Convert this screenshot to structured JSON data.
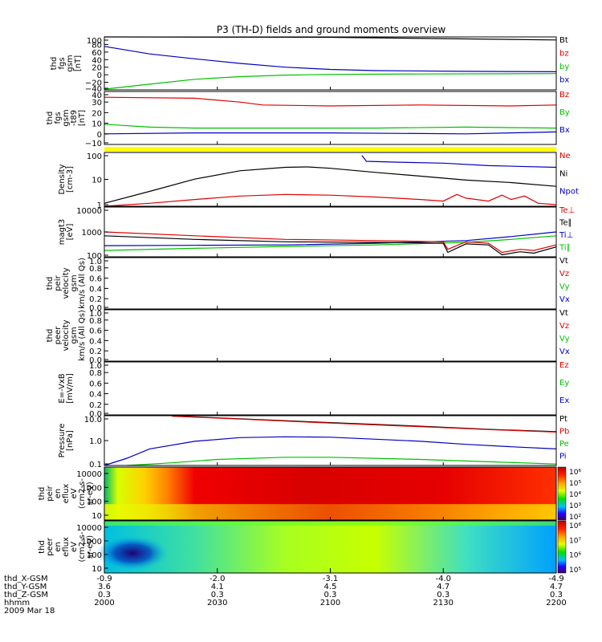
{
  "title": "P3 (TH-D) fields and ground moments overview",
  "chart_data": [
    {
      "type": "line",
      "ylabel": [
        "thd",
        "fgs",
        "gsm",
        "[nT]"
      ],
      "yticks": [
        "100",
        "80",
        "60",
        "40",
        "20",
        "0",
        "−20",
        "−40"
      ],
      "ylim": [
        -40,
        100
      ],
      "legend": [
        {
          "name": "Bt",
          "color": "#000000"
        },
        {
          "name": "bz",
          "color": "#e00000"
        },
        {
          "name": "by",
          "color": "#00c000"
        },
        {
          "name": "bx",
          "color": "#0000c0"
        }
      ],
      "series": [
        {
          "name": "Bt",
          "color": "#000000",
          "points": [
            [
              0.0,
              100
            ],
            [
              0.5,
              99
            ],
            [
              1,
              92
            ]
          ]
        },
        {
          "name": "bx",
          "color": "#0000c0",
          "points": [
            [
              0,
              75
            ],
            [
              0.1,
              55
            ],
            [
              0.2,
              42
            ],
            [
              0.3,
              30
            ],
            [
              0.4,
              20
            ],
            [
              0.5,
              14
            ],
            [
              0.6,
              11
            ],
            [
              0.8,
              9
            ],
            [
              1,
              8
            ]
          ]
        },
        {
          "name": "by",
          "color": "#00c000",
          "points": [
            [
              0,
              -38
            ],
            [
              0.1,
              -25
            ],
            [
              0.2,
              -12
            ],
            [
              0.3,
              -5
            ],
            [
              0.4,
              -1
            ],
            [
              0.5,
              1
            ],
            [
              0.7,
              2
            ],
            [
              1,
              3
            ]
          ]
        }
      ]
    },
    {
      "type": "line",
      "ylabel": [
        "thd",
        "fgs",
        "gsm",
        "-t89",
        "[nT]"
      ],
      "yticks": [
        "40",
        "30",
        "20",
        "10",
        "0",
        "−10"
      ],
      "ylim": [
        -15,
        40
      ],
      "legend": [
        {
          "name": "Bz",
          "color": "#e00000"
        },
        {
          "name": "By",
          "color": "#00c000"
        },
        {
          "name": "Bx",
          "color": "#0000c0"
        }
      ],
      "series": [
        {
          "name": "Bz",
          "color": "#e00000",
          "points": [
            [
              0,
              34
            ],
            [
              0.2,
              33
            ],
            [
              0.3,
              29
            ],
            [
              0.35,
              26
            ],
            [
              0.5,
              25
            ],
            [
              0.7,
              26
            ],
            [
              0.9,
              25
            ],
            [
              1,
              26
            ]
          ]
        },
        {
          "name": "By",
          "color": "#00c000",
          "points": [
            [
              0,
              6
            ],
            [
              0.1,
              3
            ],
            [
              0.2,
              2
            ],
            [
              0.4,
              2
            ],
            [
              0.6,
              2
            ],
            [
              0.8,
              3
            ],
            [
              1,
              2
            ]
          ]
        },
        {
          "name": "Bx",
          "color": "#0000c0",
          "points": [
            [
              0,
              -4
            ],
            [
              0.2,
              -3
            ],
            [
              0.5,
              -3
            ],
            [
              0.8,
              -4
            ],
            [
              1,
              -2
            ]
          ]
        }
      ]
    },
    {
      "type": "line",
      "scale": "log",
      "ylabel": [
        "Density",
        "[cm-3]"
      ],
      "yticks": [
        "100",
        "10",
        "1"
      ],
      "ylim": [
        0.2,
        300
      ],
      "legend": [
        {
          "name": "Ne",
          "color": "#e00000"
        },
        {
          "name": "Ni",
          "color": "#000000"
        },
        {
          "name": "Npot",
          "color": "#0000c0"
        }
      ],
      "series": [
        {
          "name": "Ni",
          "color": "#000000",
          "points": [
            [
              0,
              0.3
            ],
            [
              0.1,
              1.5
            ],
            [
              0.2,
              8
            ],
            [
              0.3,
              25
            ],
            [
              0.4,
              40
            ],
            [
              0.45,
              42
            ],
            [
              0.5,
              35
            ],
            [
              0.6,
              20
            ],
            [
              0.7,
              12
            ],
            [
              0.8,
              7
            ],
            [
              0.9,
              5
            ],
            [
              1,
              3
            ]
          ]
        },
        {
          "name": "Ne",
          "color": "#e00000",
          "points": [
            [
              0,
              0.2
            ],
            [
              0.1,
              0.3
            ],
            [
              0.2,
              0.5
            ],
            [
              0.3,
              0.8
            ],
            [
              0.4,
              1
            ],
            [
              0.5,
              0.9
            ],
            [
              0.6,
              0.7
            ],
            [
              0.7,
              0.5
            ],
            [
              0.75,
              0.4
            ],
            [
              0.78,
              1
            ],
            [
              0.8,
              0.6
            ],
            [
              0.85,
              0.4
            ],
            [
              0.88,
              0.9
            ],
            [
              0.9,
              0.5
            ],
            [
              0.93,
              0.8
            ],
            [
              0.96,
              0.3
            ],
            [
              1,
              0.25
            ]
          ]
        },
        {
          "name": "Npot",
          "color": "#0000c0",
          "points": [
            [
              0.57,
              200
            ],
            [
              0.58,
              90
            ],
            [
              0.65,
              80
            ],
            [
              0.75,
              70
            ],
            [
              0.85,
              50
            ],
            [
              1,
              40
            ]
          ]
        }
      ]
    },
    {
      "type": "line",
      "scale": "log",
      "ylabel": [
        "magt3",
        "[eV]"
      ],
      "yticks": [
        "10000",
        "1000",
        "100"
      ],
      "ylim": [
        100,
        10000
      ],
      "legend": [
        {
          "name": "Te⊥",
          "color": "#e00000"
        },
        {
          "name": "Te∥",
          "color": "#000000"
        },
        {
          "name": "Ti⊥",
          "color": "#0000c0"
        },
        {
          "name": "Ti∥",
          "color": "#00c000"
        }
      ],
      "series": [
        {
          "name": "Ti⊥",
          "color": "#0000c0",
          "points": [
            [
              0,
              280
            ],
            [
              0.2,
              290
            ],
            [
              0.4,
              300
            ],
            [
              0.6,
              350
            ],
            [
              0.8,
              450
            ],
            [
              0.9,
              650
            ],
            [
              1,
              1000
            ]
          ]
        },
        {
          "name": "Ti∥",
          "color": "#00c000",
          "points": [
            [
              0,
              180
            ],
            [
              0.2,
              220
            ],
            [
              0.4,
              260
            ],
            [
              0.6,
              300
            ],
            [
              0.8,
              380
            ],
            [
              0.9,
              500
            ],
            [
              1,
              700
            ]
          ]
        },
        {
          "name": "Te⊥",
          "color": "#e00000",
          "points": [
            [
              0,
              1000
            ],
            [
              0.2,
              700
            ],
            [
              0.4,
              500
            ],
            [
              0.6,
              450
            ],
            [
              0.75,
              400
            ],
            [
              0.76,
              200
            ],
            [
              0.8,
              400
            ],
            [
              0.85,
              350
            ],
            [
              0.88,
              150
            ],
            [
              0.92,
              200
            ],
            [
              0.95,
              180
            ],
            [
              1,
              300
            ]
          ]
        },
        {
          "name": "Te∥",
          "color": "#000000",
          "points": [
            [
              0,
              700
            ],
            [
              0.2,
              500
            ],
            [
              0.4,
              400
            ],
            [
              0.6,
              380
            ],
            [
              0.75,
              350
            ],
            [
              0.76,
              150
            ],
            [
              0.8,
              330
            ],
            [
              0.85,
              300
            ],
            [
              0.88,
              120
            ],
            [
              0.92,
              160
            ],
            [
              0.95,
              140
            ],
            [
              1,
              250
            ]
          ]
        }
      ]
    },
    {
      "type": "line",
      "ylabel": [
        "thd",
        "peir",
        "velocity",
        "gsm",
        "km/s (All Qs)"
      ],
      "yticks": [
        "1.0",
        "0.8",
        "0.6",
        "0.4",
        "0.2",
        "0.0"
      ],
      "ylim": [
        0,
        1
      ],
      "legend": [
        {
          "name": "Vt",
          "color": "#000000"
        },
        {
          "name": "Vz",
          "color": "#e00000"
        },
        {
          "name": "Vy",
          "color": "#00c000"
        },
        {
          "name": "Vx",
          "color": "#0000c0"
        }
      ],
      "series": []
    },
    {
      "type": "line",
      "ylabel": [
        "thd",
        "peer",
        "velocity",
        "gsm",
        "km/s (All Qs)"
      ],
      "yticks": [
        "1.0",
        "0.8",
        "0.6",
        "0.4",
        "0.2",
        "0.0"
      ],
      "ylim": [
        0,
        1
      ],
      "legend": [
        {
          "name": "Vt",
          "color": "#000000"
        },
        {
          "name": "Vz",
          "color": "#e00000"
        },
        {
          "name": "Vy",
          "color": "#00c000"
        },
        {
          "name": "Vx",
          "color": "#0000c0"
        }
      ],
      "series": []
    },
    {
      "type": "line",
      "ylabel": [
        "E=-VxB",
        "[mV/m]"
      ],
      "yticks": [
        "1.0",
        "0.8",
        "0.6",
        "0.4",
        "0.2",
        "0.0"
      ],
      "ylim": [
        0,
        1
      ],
      "legend": [
        {
          "name": "Ez",
          "color": "#e00000"
        },
        {
          "name": "Ey",
          "color": "#00c000"
        },
        {
          "name": "Ex",
          "color": "#0000c0"
        }
      ],
      "series": []
    },
    {
      "type": "line",
      "scale": "log",
      "ylabel": [
        "Pressure",
        "[nPa]"
      ],
      "yticks": [
        "10.0",
        "1.0",
        "0.1"
      ],
      "ylim": [
        0.02,
        40
      ],
      "legend": [
        {
          "name": "Pt",
          "color": "#000000"
        },
        {
          "name": "Pb",
          "color": "#e00000"
        },
        {
          "name": "Pe",
          "color": "#00c000"
        },
        {
          "name": "Pi",
          "color": "#0000c0"
        }
      ],
      "series": [
        {
          "name": "Pt",
          "color": "#000000",
          "points": [
            [
              0.15,
              38
            ],
            [
              0.3,
              25
            ],
            [
              0.5,
              14
            ],
            [
              0.7,
              8
            ],
            [
              0.85,
              5
            ],
            [
              1,
              3.5
            ]
          ]
        },
        {
          "name": "Pb",
          "color": "#e00000",
          "points": [
            [
              0.15,
              37
            ],
            [
              0.3,
              24
            ],
            [
              0.5,
              13
            ],
            [
              0.7,
              7.5
            ],
            [
              0.85,
              4.8
            ],
            [
              1,
              3.3
            ]
          ]
        },
        {
          "name": "Pi",
          "color": "#0000c0",
          "points": [
            [
              0,
              0.02
            ],
            [
              0.05,
              0.06
            ],
            [
              0.1,
              0.25
            ],
            [
              0.2,
              0.8
            ],
            [
              0.3,
              1.4
            ],
            [
              0.4,
              1.6
            ],
            [
              0.5,
              1.5
            ],
            [
              0.6,
              1.1
            ],
            [
              0.7,
              0.8
            ],
            [
              0.8,
              0.5
            ],
            [
              0.9,
              0.35
            ],
            [
              1,
              0.25
            ]
          ]
        },
        {
          "name": "Pe",
          "color": "#00c000",
          "points": [
            [
              0.05,
              0.02
            ],
            [
              0.15,
              0.03
            ],
            [
              0.25,
              0.05
            ],
            [
              0.4,
              0.07
            ],
            [
              0.5,
              0.07
            ],
            [
              0.7,
              0.05
            ],
            [
              0.85,
              0.035
            ],
            [
              1,
              0.025
            ]
          ]
        }
      ]
    },
    {
      "type": "heatmap",
      "ylabel": [
        "thd",
        "peir",
        "en",
        "eflux",
        "eV",
        "(cm2-s-",
        "sr-eV)"
      ],
      "yticks": [
        "10000",
        "1000",
        "100",
        "10"
      ],
      "colorbar_ticks": [
        "10⁶",
        "10⁵",
        "10⁴",
        "10³",
        "10²"
      ]
    },
    {
      "type": "heatmap",
      "ylabel": [
        "thd",
        "peer",
        "en",
        "eflux",
        "eV",
        "(cm2-s-",
        "sr-eV)"
      ],
      "yticks": [
        "10000",
        "1000",
        "100",
        "10"
      ],
      "colorbar_ticks": [
        "10⁸",
        "10⁷",
        "10⁶",
        "10⁵"
      ]
    }
  ],
  "x_axis": {
    "rows": [
      {
        "label": "thd_X-GSM",
        "values": [
          "-0.9",
          "-2.0",
          "-3.1",
          "-4.0",
          "-4.9"
        ]
      },
      {
        "label": "thd_Y-GSM",
        "values": [
          "3.6",
          "4.1",
          "4.5",
          "4.7",
          "4.7"
        ]
      },
      {
        "label": "thd_Z-GSM",
        "values": [
          "0.3",
          "0.3",
          "0.3",
          "0.3",
          "0.3"
        ]
      },
      {
        "label": "hhmm",
        "values": [
          "2000",
          "2030",
          "2100",
          "2130",
          "2200"
        ]
      }
    ],
    "date": "2009 Mar 18"
  }
}
